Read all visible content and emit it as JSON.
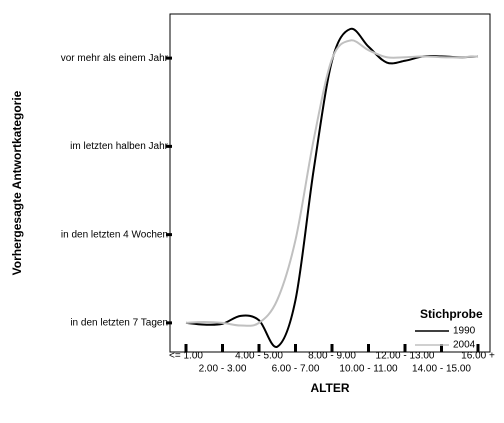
{
  "chart_data": {
    "type": "line",
    "xlabel": "ALTER",
    "ylabel": "Vorhergesagte Antwortkategorie",
    "categories": [
      "<= 1.00",
      null,
      "2.00 - 3.00",
      null,
      "4.00 - 5.00",
      null,
      "6.00 - 7.00",
      null,
      "8.00 - 9.00",
      null,
      "10.00 - 11.00",
      null,
      "12.00 - 13.00",
      null,
      "14.00 - 15.00",
      null,
      "16.00 +"
    ],
    "series": [
      {
        "name": "1990",
        "color": "#000000",
        "values": [
          1.0,
          0.98,
          0.99,
          1.08,
          1.03,
          0.73,
          1.26,
          2.74,
          3.97,
          4.33,
          4.13,
          3.95,
          3.97,
          4.02,
          4.02,
          4.01,
          4.02
        ]
      },
      {
        "name": "2004",
        "color": "#c0c0c0",
        "values": [
          1.0,
          1.01,
          1.0,
          0.97,
          1.0,
          1.26,
          1.94,
          3.08,
          3.99,
          4.2,
          4.09,
          4.01,
          4.01,
          4.02,
          4.01,
          4.01,
          4.02
        ]
      }
    ],
    "ylim": [
      0.67,
      4.5
    ],
    "yticks": [
      {
        "value": 1,
        "label": "in den letzten 7 Tagen"
      },
      {
        "value": 2,
        "label": "in den letzten 4 Wochen"
      },
      {
        "value": 3,
        "label": "im letzten halben Jahr"
      },
      {
        "value": 4,
        "label": "vor mehr als einem Jahr"
      }
    ],
    "legend_title": "Stichprobe",
    "legend": "lower right"
  }
}
